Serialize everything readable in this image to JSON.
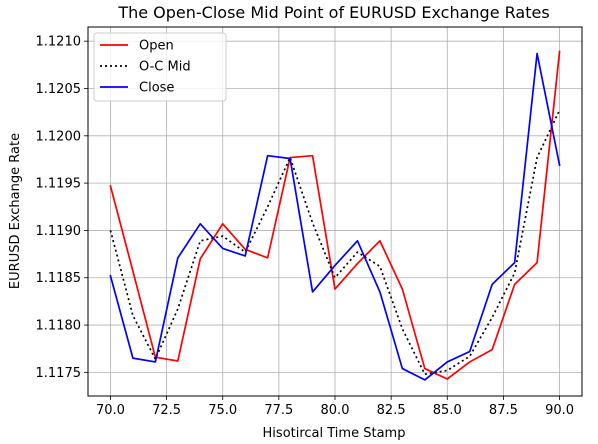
{
  "chart_data": {
    "type": "line",
    "title": "The Open-Close Mid Point of EURUSD Exchange Rates",
    "xlabel": "Hisotircal Time Stamp",
    "ylabel": "EURUSD Exchange Rate",
    "xlim": [
      69.0,
      91.0
    ],
    "ylim": [
      1.11725,
      1.12115
    ],
    "xticks": [
      70.0,
      72.5,
      75.0,
      77.5,
      80.0,
      82.5,
      85.0,
      87.5,
      90.0
    ],
    "xtick_labels": [
      "70.0",
      "72.5",
      "75.0",
      "77.5",
      "80.0",
      "82.5",
      "85.0",
      "87.5",
      "90.0"
    ],
    "yticks": [
      1.1175,
      1.118,
      1.1185,
      1.119,
      1.1195,
      1.12,
      1.1205,
      1.121
    ],
    "ytick_labels": [
      "1.1175",
      "1.1180",
      "1.1185",
      "1.1190",
      "1.1195",
      "1.1200",
      "1.1205",
      "1.1210"
    ],
    "grid": true,
    "legend_position": "top-left",
    "x": [
      70,
      71,
      72,
      73,
      74,
      75,
      76,
      77,
      78,
      79,
      80,
      81,
      82,
      83,
      84,
      85,
      86,
      87,
      88,
      89,
      90
    ],
    "series": [
      {
        "name": "Open",
        "color": "#ff0000",
        "style": "solid",
        "values": [
          1.11947,
          1.11857,
          1.11766,
          1.11762,
          1.1187,
          1.11907,
          1.1188,
          1.11871,
          1.11977,
          1.11979,
          1.11838,
          1.11865,
          1.11889,
          1.11838,
          1.11754,
          1.11743,
          1.11761,
          1.11774,
          1.11843,
          1.11866,
          1.12089
        ]
      },
      {
        "name": "O-C Mid",
        "color": "#000000",
        "style": "dotted",
        "values": [
          1.119,
          1.1181,
          1.11764,
          1.11817,
          1.11889,
          1.11894,
          1.11877,
          1.11925,
          1.11977,
          1.11908,
          1.1185,
          1.11877,
          1.11862,
          1.11796,
          1.11748,
          1.11752,
          1.11767,
          1.11808,
          1.11855,
          1.11977,
          1.12027
        ]
      },
      {
        "name": "Close",
        "color": "#0000ff",
        "style": "solid",
        "values": [
          1.11852,
          1.11765,
          1.11761,
          1.11871,
          1.11907,
          1.11881,
          1.11873,
          1.11979,
          1.11976,
          1.11835,
          1.11863,
          1.11889,
          1.11835,
          1.11754,
          1.11742,
          1.11761,
          1.11772,
          1.11843,
          1.11866,
          1.12087,
          1.11969
        ]
      }
    ]
  }
}
